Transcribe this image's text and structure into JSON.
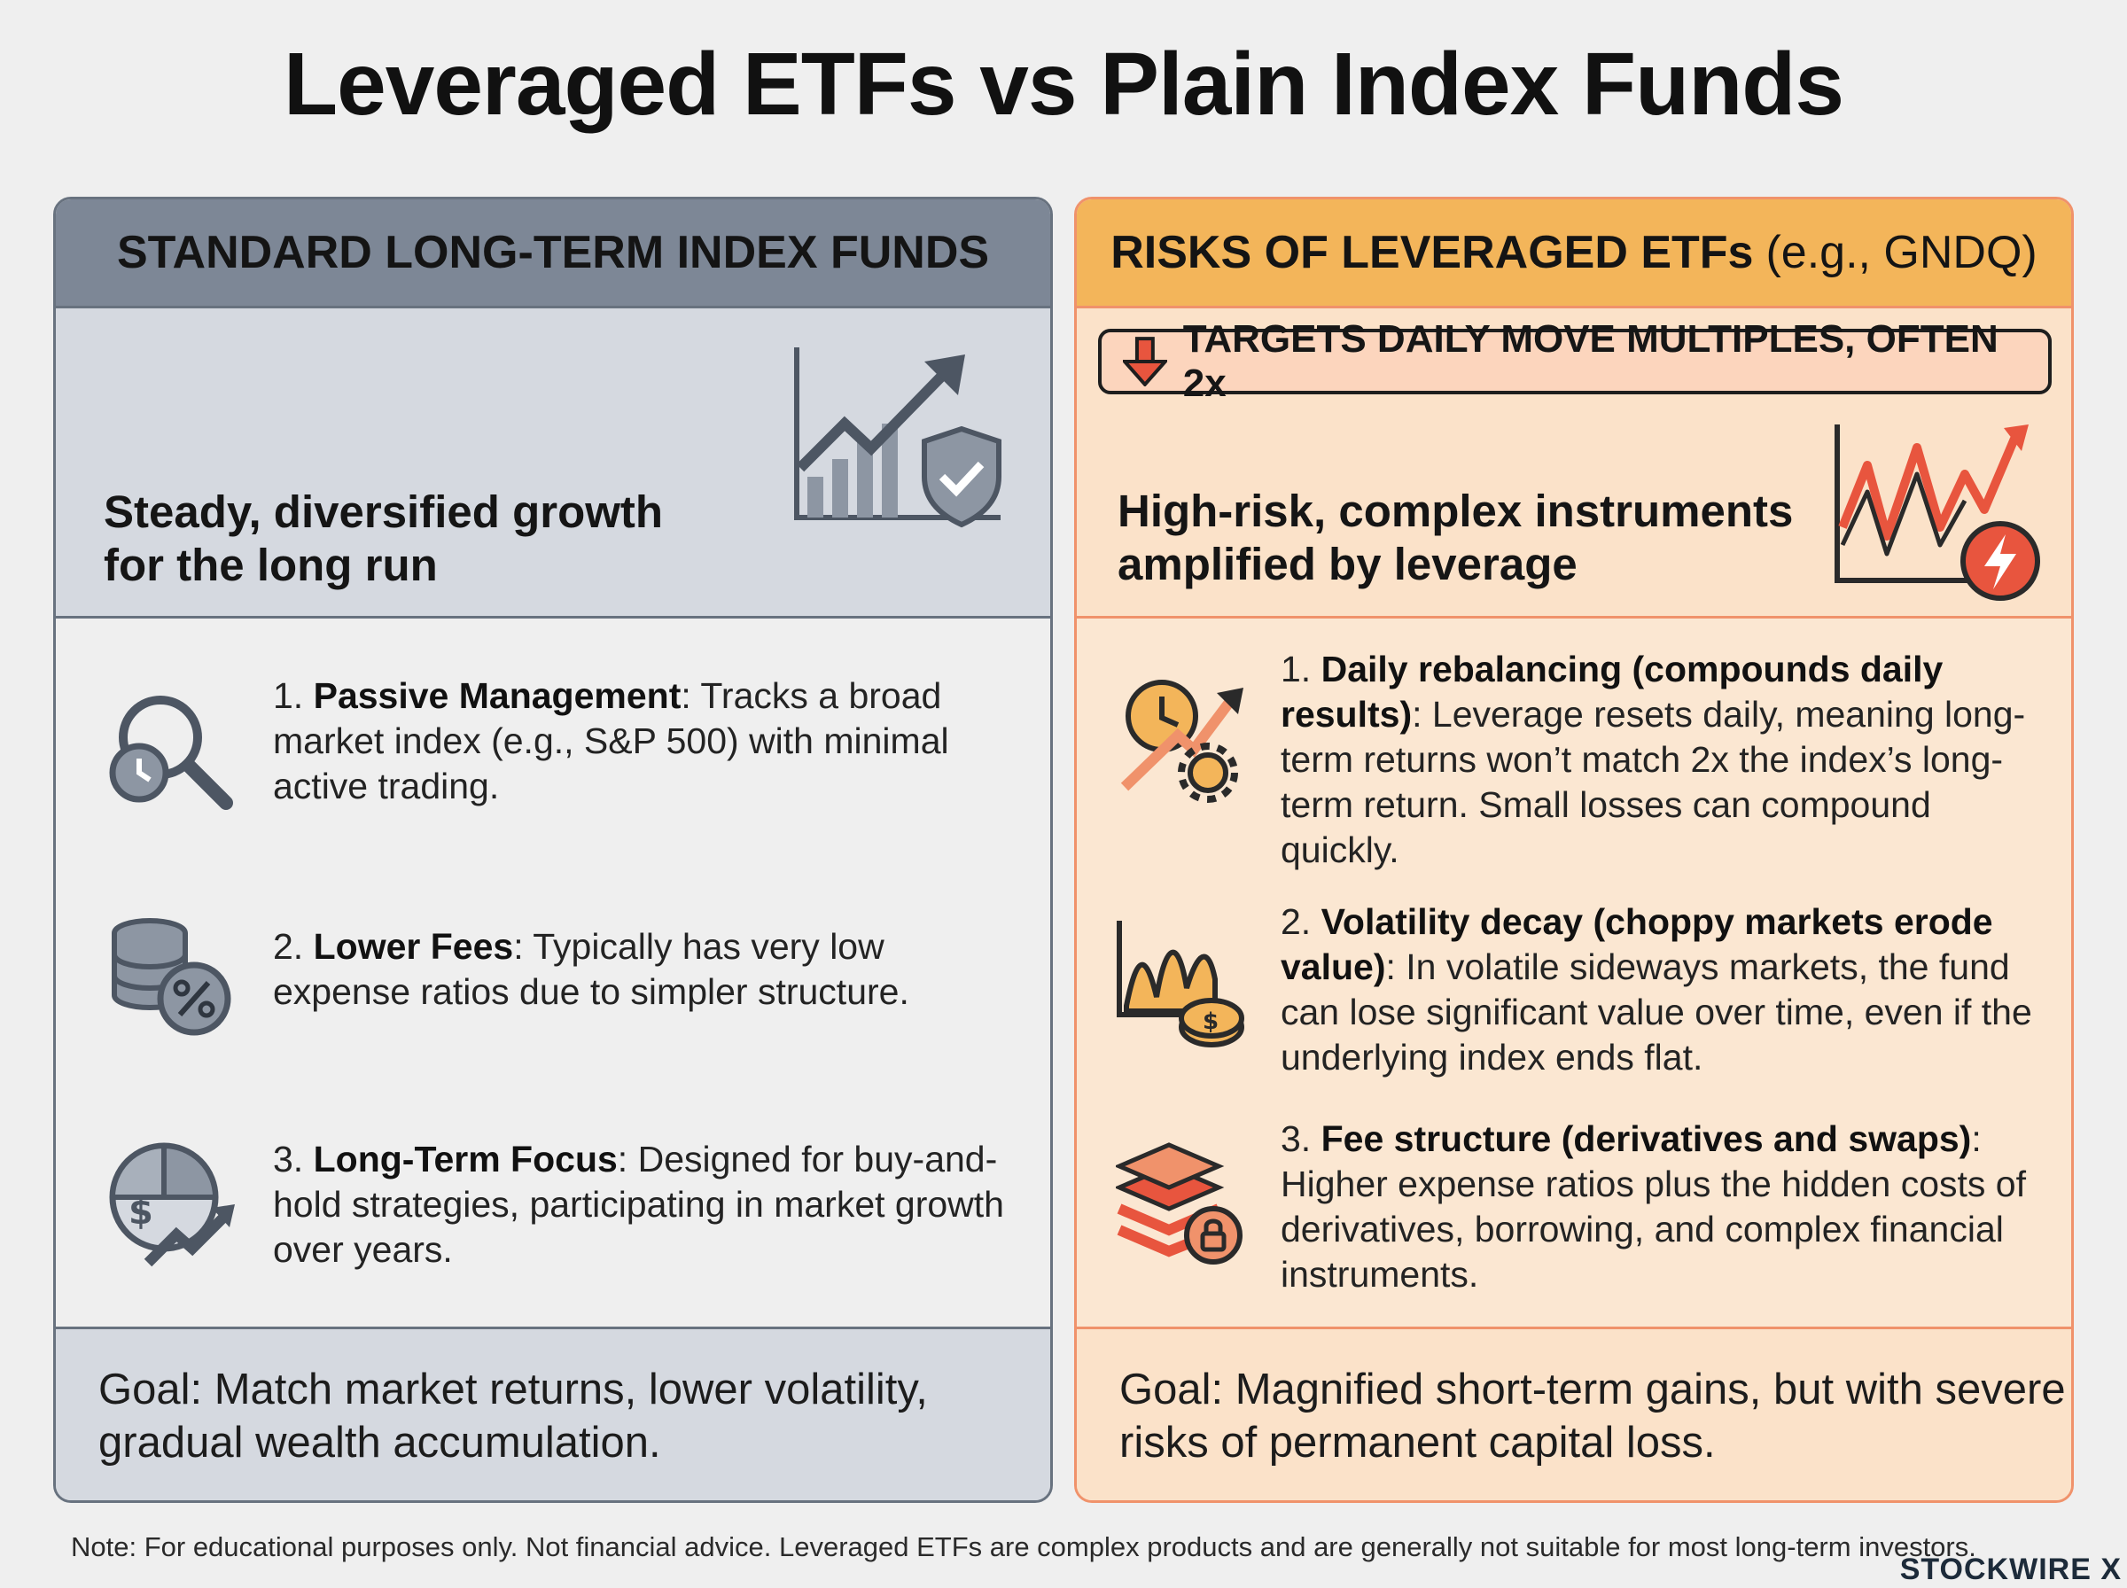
{
  "title": "Leveraged ETFs vs Plain Index Funds",
  "left": {
    "header": "STANDARD LONG-TERM INDEX FUNDS",
    "tagline_l1": "Steady, diversified growth",
    "tagline_l2": "for the long run",
    "items": [
      {
        "num": "1.",
        "term": "Passive Management",
        "text": ": Tracks a broad market index (e.g., S&P 500) with minimal active trading.",
        "icon": "magnifier-clock-icon"
      },
      {
        "num": "2.",
        "term": "Lower Fees",
        "text": ": Typically has very low expense ratios due to simpler structure.",
        "icon": "coins-percent-icon"
      },
      {
        "num": "3.",
        "term": "Long-Term Focus",
        "text": ": Designed for buy-and-hold strategies, participating in market growth over years.",
        "icon": "pie-growth-icon"
      }
    ],
    "goal": "Goal: Match market returns, lower volatility, gradual wealth accumulation."
  },
  "right": {
    "header_bold": "RISKS OF LEVERAGED ETFs",
    "header_light": "(e.g., GNDQ)",
    "banner": "TARGETS DAILY MOVE MULTIPLES, OFTEN 2x",
    "tagline_l1": "High-risk, complex instruments",
    "tagline_l2": "amplified by leverage",
    "items": [
      {
        "num": "1.",
        "term": "Daily rebalancing (compounds daily results)",
        "text": ": Leverage resets daily, meaning long-term returns won’t match 2x the index’s long-term return. Small losses can compound quickly.",
        "icon": "clock-gear-icon"
      },
      {
        "num": "2.",
        "term": "Volatility decay (choppy markets erode value)",
        "text": ": In volatile sideways markets, the fund can lose significant value over time, even if the underlying index ends flat.",
        "icon": "wave-chart-coin-icon"
      },
      {
        "num": "3.",
        "term": "Fee structure (derivatives and swaps)",
        "text": ": Higher expense ratios plus the hidden costs of derivatives, borrowing, and complex financial instruments.",
        "icon": "layers-lock-icon"
      }
    ],
    "goal": "Goal: Magnified short-term gains, but with severe risks of permanent capital loss."
  },
  "note": "Note: For educational purposes only. Not financial advice. Leveraged ETFs are complex products and are generally not suitable for most long-term investors.",
  "brand": "STOCKWIRE X",
  "colors": {
    "slate": "#68727f",
    "slate_header": "#7d8796",
    "slate_light": "#d5d9e0",
    "orange_header": "#f3b55a",
    "orange_border": "#f0926b",
    "peach": "#fbe2c9",
    "red": "#e8553e"
  }
}
